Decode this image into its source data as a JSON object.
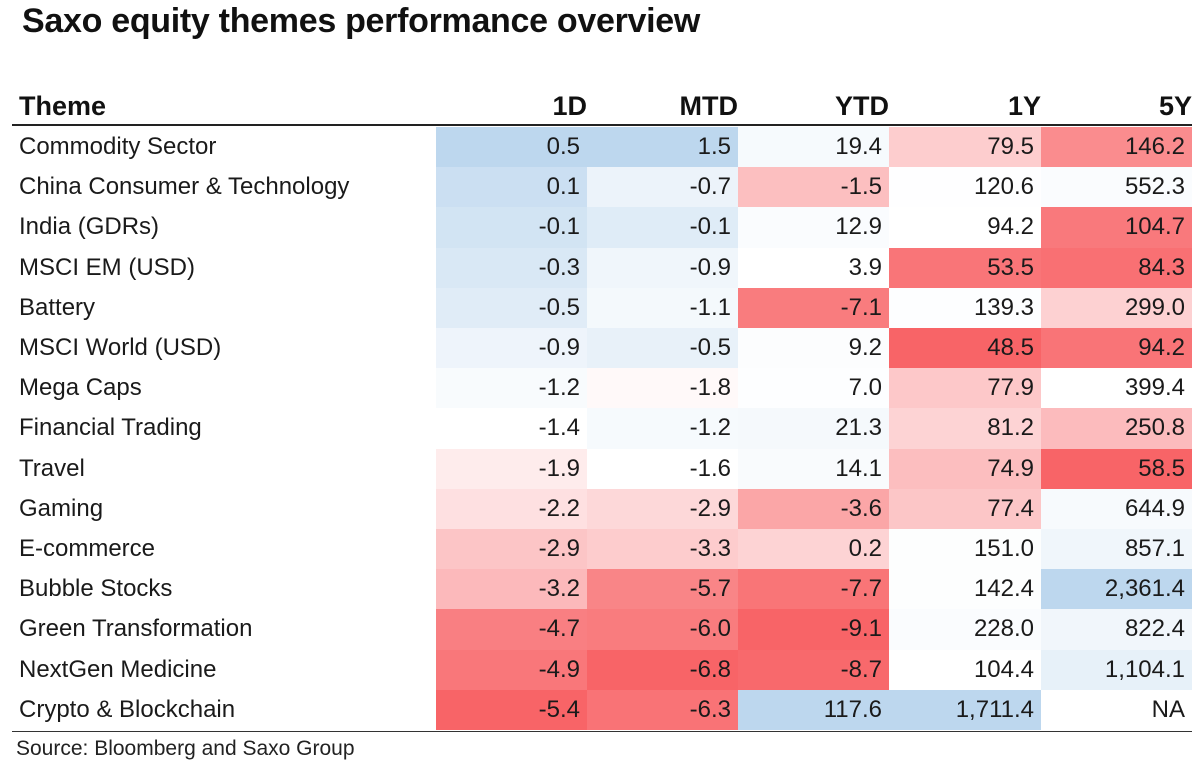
{
  "title": "Saxo equity themes performance overview",
  "source": "Source: Bloomberg and Saxo Group",
  "chart_data": {
    "type": "table",
    "title": "Saxo equity themes performance overview",
    "columns": [
      "Theme",
      "1D",
      "MTD",
      "YTD",
      "1Y",
      "5Y"
    ],
    "rows": [
      {
        "theme": "Commodity Sector",
        "d1": "0.5",
        "mtd": "1.5",
        "ytd": "19.4",
        "y1": "79.5",
        "y5": "146.2"
      },
      {
        "theme": "China Consumer & Technology",
        "d1": "0.1",
        "mtd": "-0.7",
        "ytd": "-1.5",
        "y1": "120.6",
        "y5": "552.3"
      },
      {
        "theme": "India (GDRs)",
        "d1": "-0.1",
        "mtd": "-0.1",
        "ytd": "12.9",
        "y1": "94.2",
        "y5": "104.7"
      },
      {
        "theme": "MSCI EM (USD)",
        "d1": "-0.3",
        "mtd": "-0.9",
        "ytd": "3.9",
        "y1": "53.5",
        "y5": "84.3"
      },
      {
        "theme": "Battery",
        "d1": "-0.5",
        "mtd": "-1.1",
        "ytd": "-7.1",
        "y1": "139.3",
        "y5": "299.0"
      },
      {
        "theme": "MSCI World (USD)",
        "d1": "-0.9",
        "mtd": "-0.5",
        "ytd": "9.2",
        "y1": "48.5",
        "y5": "94.2"
      },
      {
        "theme": "Mega Caps",
        "d1": "-1.2",
        "mtd": "-1.8",
        "ytd": "7.0",
        "y1": "77.9",
        "y5": "399.4"
      },
      {
        "theme": "Financial Trading",
        "d1": "-1.4",
        "mtd": "-1.2",
        "ytd": "21.3",
        "y1": "81.2",
        "y5": "250.8"
      },
      {
        "theme": "Travel",
        "d1": "-1.9",
        "mtd": "-1.6",
        "ytd": "14.1",
        "y1": "74.9",
        "y5": "58.5"
      },
      {
        "theme": "Gaming",
        "d1": "-2.2",
        "mtd": "-2.9",
        "ytd": "-3.6",
        "y1": "77.4",
        "y5": "644.9"
      },
      {
        "theme": "E-commerce",
        "d1": "-2.9",
        "mtd": "-3.3",
        "ytd": "0.2",
        "y1": "151.0",
        "y5": "857.1"
      },
      {
        "theme": "Bubble Stocks",
        "d1": "-3.2",
        "mtd": "-5.7",
        "ytd": "-7.7",
        "y1": "142.4",
        "y5": "2,361.4"
      },
      {
        "theme": "Green Transformation",
        "d1": "-4.7",
        "mtd": "-6.0",
        "ytd": "-9.1",
        "y1": "228.0",
        "y5": "822.4"
      },
      {
        "theme": "NextGen Medicine",
        "d1": "-4.9",
        "mtd": "-6.8",
        "ytd": "-8.7",
        "y1": "104.4",
        "y5": "1,104.1"
      },
      {
        "theme": "Crypto & Blockchain",
        "d1": "-5.4",
        "mtd": "-6.3",
        "ytd": "117.6",
        "y1": "1,711.4",
        "y5": "NA"
      }
    ],
    "color_scale": {
      "negative": "#f86467",
      "neutral": "#ffffff",
      "positive": "#bdd7ee"
    }
  }
}
